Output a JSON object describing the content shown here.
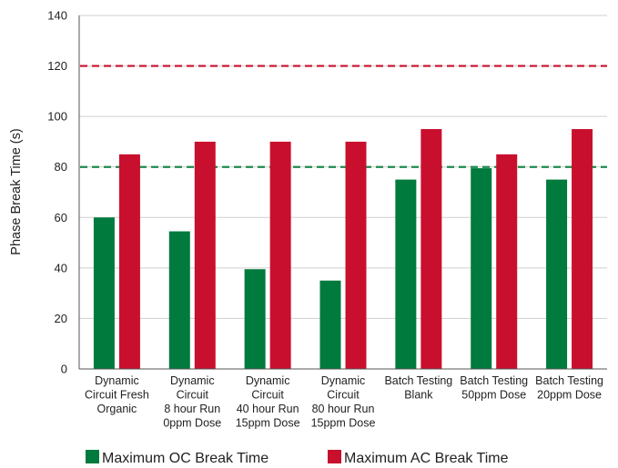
{
  "chart_data": {
    "type": "bar",
    "ylabel": "Phase Break Time (s)",
    "ylim": [
      0,
      140
    ],
    "yticks": [
      0,
      20,
      40,
      60,
      80,
      100,
      120,
      140
    ],
    "grid": "horizontal",
    "legend_position": "bottom",
    "categories": [
      [
        "Dynamic",
        "Circuit Fresh",
        "Organic"
      ],
      [
        "Dynamic",
        "Circuit",
        "8 hour Run",
        "0ppm Dose"
      ],
      [
        "Dynamic",
        "Circuit",
        "40 hour Run",
        "15ppm Dose"
      ],
      [
        "Dynamic",
        "Circuit",
        "80 hour Run",
        "15ppm Dose"
      ],
      [
        "Batch Testing",
        "Blank"
      ],
      [
        "Batch Testing",
        "50ppm Dose"
      ],
      [
        "Batch Testing",
        "20ppm Dose"
      ]
    ],
    "series": [
      {
        "name": "Maximum OC Break Time",
        "color": "#007a3d",
        "values": [
          60,
          54.5,
          39.5,
          35,
          75,
          79.5,
          75
        ]
      },
      {
        "name": "Maximum AC Break Time",
        "color": "#c8102e",
        "values": [
          85,
          90,
          90,
          90,
          95,
          85,
          95
        ]
      }
    ],
    "reference_lines": [
      {
        "value": 120,
        "color": "#c8102e",
        "style": "dashed"
      },
      {
        "value": 80,
        "color": "#1f8a4c",
        "style": "dashed"
      }
    ]
  }
}
